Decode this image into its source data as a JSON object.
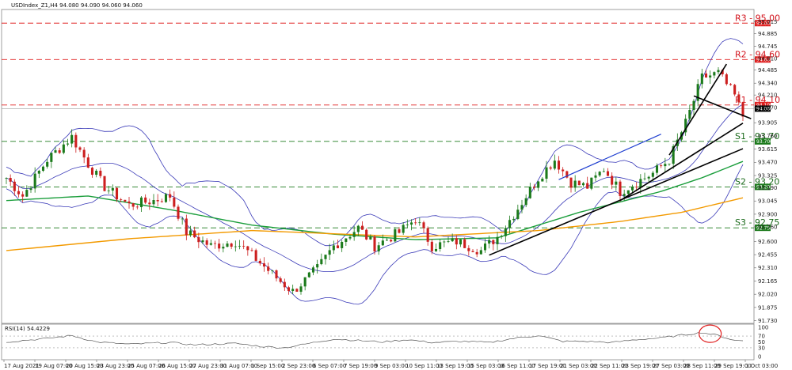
{
  "chart_data": {
    "type": "candlestick",
    "header": "USDIndex_Z1,H4  94.080 94.090 94.060 94.060",
    "price_axis": {
      "range": [
        91.7,
        95.15
      ],
      "ticks": [
        "95.015",
        "94.885",
        "94.745",
        "94.610",
        "94.485",
        "94.340",
        "94.210",
        "94.070",
        "93.905",
        "93.760",
        "93.615",
        "93.470",
        "93.325",
        "93.190",
        "93.045",
        "92.900",
        "92.760",
        "92.600",
        "92.455",
        "92.310",
        "92.165",
        "92.020",
        "91.875",
        "91.730"
      ]
    },
    "current_price": {
      "value": 94.06,
      "label": "94.060"
    },
    "levels": [
      {
        "name": "R3",
        "value": 95.0,
        "label": "R3 - 95.00",
        "tag": "95.000",
        "kind": "resistance"
      },
      {
        "name": "R2",
        "value": 94.6,
        "label": "R2 - 94.60",
        "tag": "94.600",
        "kind": "resistance"
      },
      {
        "name": "R1",
        "value": 94.1,
        "label": "R1 - 94.10",
        "tag": "94.100",
        "kind": "resistance"
      },
      {
        "name": "S1",
        "value": 93.7,
        "label": "S1 - 93.70",
        "tag": "93.700",
        "kind": "support"
      },
      {
        "name": "S2",
        "value": 93.2,
        "label": "S2 - 93.20",
        "tag": "93.200",
        "kind": "support"
      },
      {
        "name": "S3",
        "value": 92.75,
        "label": "S3 - 92.75",
        "tag": "92.750",
        "kind": "support"
      }
    ],
    "time_axis": [
      "17 Aug 2021",
      "19 Aug 07:00",
      "20 Aug 15:00",
      "23 Aug 23:00",
      "25 Aug 07:00",
      "26 Aug 15:00",
      "27 Aug 23:00",
      "31 Aug 07:00",
      "1 Sep 15:00",
      "2 Sep 23:00",
      "6 Sep 07:00",
      "7 Sep 19:00",
      "9 Sep 03:00",
      "10 Sep 11:00",
      "13 Sep 19:00",
      "15 Sep 03:00",
      "16 Sep 11:00",
      "17 Sep 19:00",
      "21 Sep 03:00",
      "22 Sep 11:00",
      "23 Sep 19:00",
      "27 Sep 03:00",
      "28 Sep 11:00",
      "29 Sep 19:00",
      "1 Oct 03:00"
    ],
    "price_anchors": [
      [
        0,
        93.3
      ],
      [
        4,
        93.1
      ],
      [
        10,
        93.5
      ],
      [
        16,
        93.75
      ],
      [
        20,
        93.45
      ],
      [
        24,
        93.2
      ],
      [
        30,
        93.0
      ],
      [
        36,
        93.05
      ],
      [
        40,
        93.1
      ],
      [
        44,
        92.7
      ],
      [
        50,
        92.55
      ],
      [
        56,
        92.6
      ],
      [
        60,
        92.45
      ],
      [
        66,
        92.2
      ],
      [
        70,
        92.05
      ],
      [
        76,
        92.3
      ],
      [
        80,
        92.55
      ],
      [
        86,
        92.75
      ],
      [
        90,
        92.55
      ],
      [
        96,
        92.7
      ],
      [
        100,
        92.85
      ],
      [
        104,
        92.55
      ],
      [
        110,
        92.6
      ],
      [
        116,
        92.5
      ],
      [
        120,
        92.65
      ],
      [
        124,
        92.9
      ],
      [
        130,
        93.3
      ],
      [
        134,
        93.5
      ],
      [
        138,
        93.25
      ],
      [
        142,
        93.2
      ],
      [
        146,
        93.4
      ],
      [
        150,
        93.15
      ],
      [
        154,
        93.25
      ],
      [
        158,
        93.35
      ],
      [
        162,
        93.5
      ],
      [
        166,
        93.9
      ],
      [
        170,
        94.4
      ],
      [
        174,
        94.45
      ],
      [
        178,
        94.2
      ],
      [
        180,
        93.98
      ]
    ],
    "rsi": {
      "label": "RSI(14) 54.4229",
      "range": [
        0,
        100
      ],
      "ticks": [
        "100",
        "70",
        "50",
        "30",
        "0"
      ],
      "levels": [
        70,
        30
      ],
      "anchors": [
        [
          0,
          50
        ],
        [
          10,
          62
        ],
        [
          16,
          72
        ],
        [
          22,
          50
        ],
        [
          30,
          42
        ],
        [
          40,
          48
        ],
        [
          46,
          40
        ],
        [
          56,
          45
        ],
        [
          62,
          35
        ],
        [
          68,
          30
        ],
        [
          74,
          45
        ],
        [
          80,
          60
        ],
        [
          86,
          55
        ],
        [
          92,
          50
        ],
        [
          98,
          58
        ],
        [
          104,
          48
        ],
        [
          112,
          52
        ],
        [
          118,
          48
        ],
        [
          124,
          62
        ],
        [
          130,
          72
        ],
        [
          136,
          52
        ],
        [
          142,
          52
        ],
        [
          148,
          48
        ],
        [
          154,
          58
        ],
        [
          160,
          64
        ],
        [
          166,
          75
        ],
        [
          170,
          82
        ],
        [
          174,
          72
        ],
        [
          178,
          55
        ],
        [
          180,
          54
        ]
      ]
    },
    "series": [
      {
        "name": "ma-green",
        "color": "#1b9e3c",
        "anchors": [
          [
            0,
            93.05
          ],
          [
            20,
            93.1
          ],
          [
            40,
            92.95
          ],
          [
            60,
            92.78
          ],
          [
            80,
            92.68
          ],
          [
            100,
            92.62
          ],
          [
            120,
            92.64
          ],
          [
            140,
            92.92
          ],
          [
            160,
            93.15
          ],
          [
            170,
            93.3
          ],
          [
            180,
            93.48
          ]
        ]
      },
      {
        "name": "ma-orange",
        "color": "#f39a00",
        "anchors": [
          [
            0,
            92.5
          ],
          [
            30,
            92.63
          ],
          [
            60,
            92.72
          ],
          [
            100,
            92.65
          ],
          [
            130,
            92.72
          ],
          [
            150,
            92.82
          ],
          [
            165,
            92.92
          ],
          [
            180,
            93.08
          ]
        ]
      }
    ],
    "trendlines": [
      {
        "from": [
          135,
          93.28
        ],
        "to": [
          160,
          93.78
        ],
        "color": "#1f3fd0"
      },
      {
        "from": [
          118,
          92.45
        ],
        "to": [
          180,
          93.62
        ],
        "color": "#000000"
      },
      {
        "from": [
          150,
          93.05
        ],
        "to": [
          180,
          93.9
        ],
        "color": "#000000"
      },
      {
        "from": [
          162,
          93.55
        ],
        "to": [
          176,
          94.55
        ],
        "color": "#000000"
      },
      {
        "from": [
          168,
          94.2
        ],
        "to": [
          182,
          93.95
        ],
        "color": "#000000"
      }
    ],
    "colors": {
      "up": "#1b7a1b",
      "down": "#cc1f1f",
      "band": "#3a3ab8",
      "resistance": "#e02020",
      "support": "#1c7a1c"
    }
  }
}
